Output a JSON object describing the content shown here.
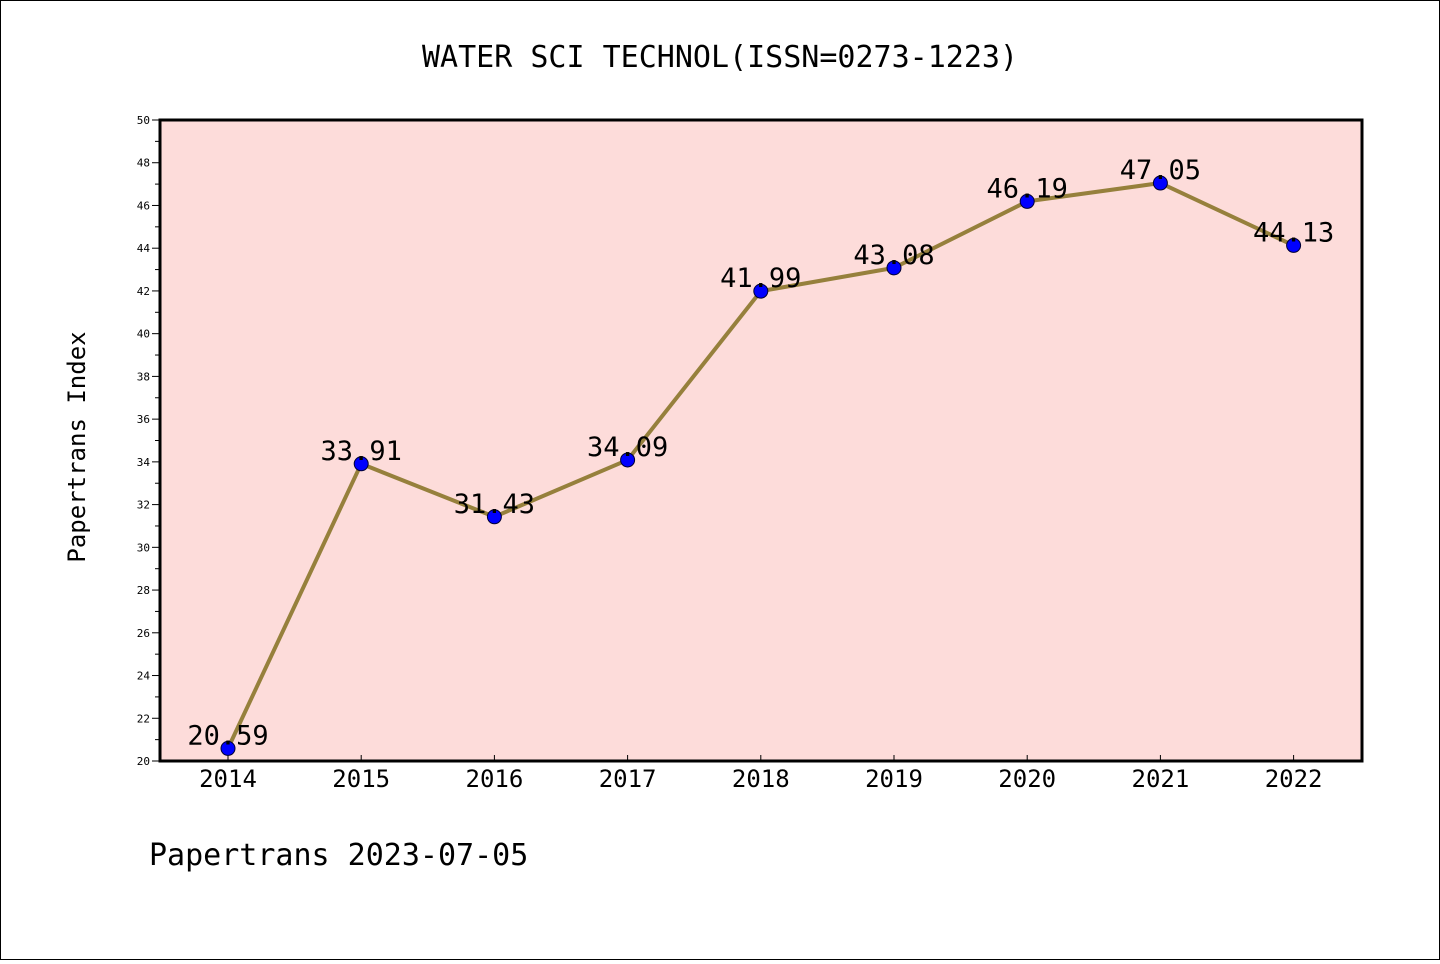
{
  "chart_data": {
    "type": "line",
    "title": "WATER SCI TECHNOL(ISSN=0273-1223)",
    "xlabel": "",
    "ylabel": "Papertrans Index",
    "categories": [
      "2014",
      "2015",
      "2016",
      "2017",
      "2018",
      "2019",
      "2020",
      "2021",
      "2022"
    ],
    "series": [
      {
        "values": [
          20.59,
          33.91,
          31.43,
          34.09,
          41.99,
          43.08,
          46.19,
          47.05,
          44.13
        ],
        "data_labels": [
          "20.59",
          "33.91",
          "31.43",
          "34.09",
          "41.99",
          "43.08",
          "46.19",
          "47.05",
          "44.13"
        ]
      }
    ],
    "ylim": [
      20,
      50
    ],
    "yticks": [
      "20",
      "22",
      "24",
      "26",
      "28",
      "30",
      "32",
      "34",
      "36",
      "38",
      "40",
      "42",
      "44",
      "46",
      "48",
      "50"
    ],
    "grid": false,
    "legend": "none"
  },
  "footer_text": "Papertrans 2023-07-05",
  "colors": {
    "plot_background": "#FDDCDA",
    "line": "#96803C",
    "marker": "#0000FF",
    "axis": "#000000"
  }
}
